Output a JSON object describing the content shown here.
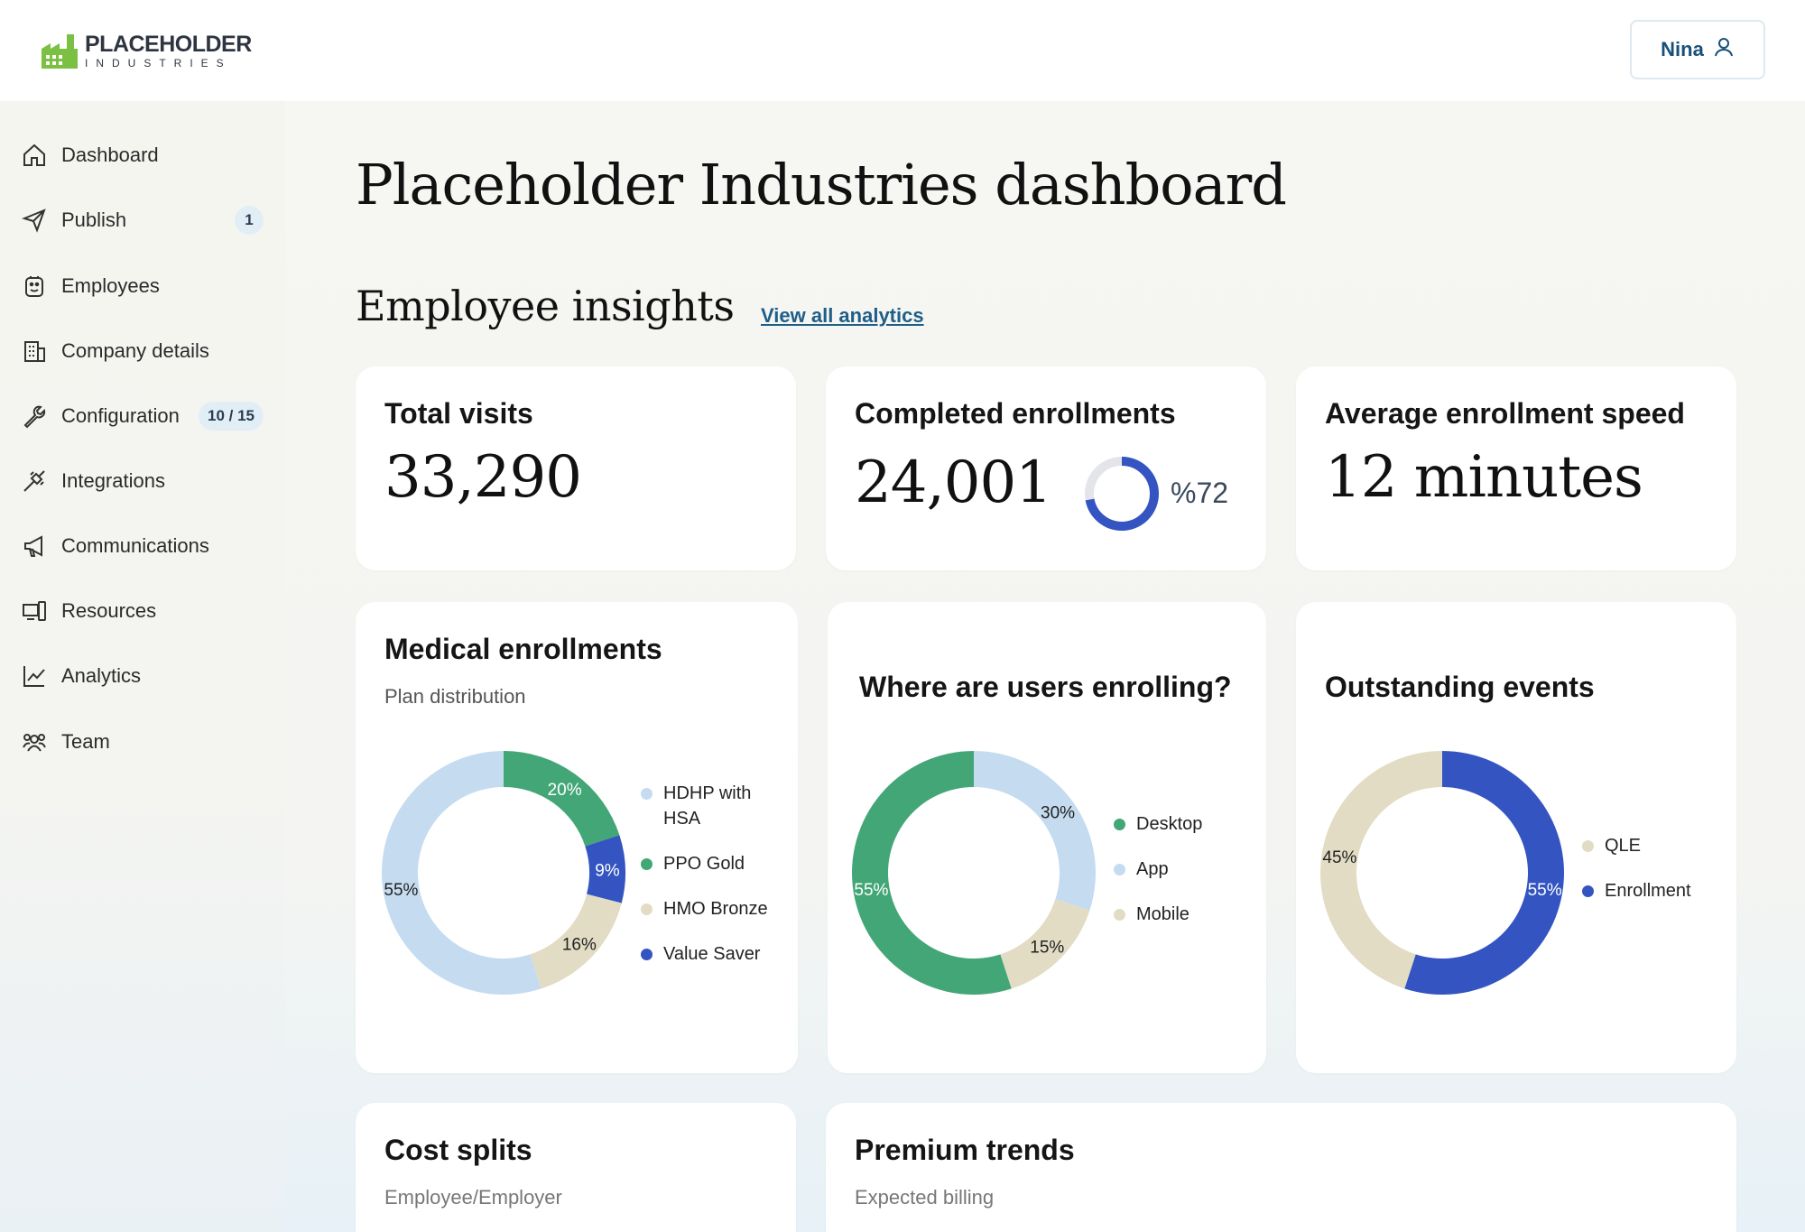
{
  "header": {
    "logo_title": "PLACEHOLDER",
    "logo_subtitle": "INDUSTRIES",
    "user_name": "Nina"
  },
  "sidebar": {
    "items": [
      {
        "label": "Dashboard",
        "icon": "home-icon"
      },
      {
        "label": "Publish",
        "icon": "send-icon",
        "badge": "1"
      },
      {
        "label": "Employees",
        "icon": "employee-icon"
      },
      {
        "label": "Company details",
        "icon": "building-icon"
      },
      {
        "label": "Configuration",
        "icon": "wrench-icon",
        "badge": "10 / 15"
      },
      {
        "label": "Integrations",
        "icon": "plug-icon"
      },
      {
        "label": "Communications",
        "icon": "megaphone-icon"
      },
      {
        "label": "Resources",
        "icon": "devices-icon"
      },
      {
        "label": "Analytics",
        "icon": "chart-line-icon"
      },
      {
        "label": "Team",
        "icon": "team-icon"
      }
    ]
  },
  "main": {
    "page_title": "Placeholder Industries dashboard",
    "section_title": "Employee insights",
    "section_link": "View all analytics"
  },
  "stats": {
    "total_visits": {
      "title": "Total visits",
      "value": "33,290"
    },
    "completed_enrollments": {
      "title": "Completed enrollments",
      "value": "24,001",
      "percent_label": "%72",
      "percent": 72
    },
    "avg_speed": {
      "title": "Average enrollment speed",
      "value": "12 minutes"
    }
  },
  "cards": {
    "medical": {
      "title": "Medical enrollments",
      "subtitle": "Plan distribution"
    },
    "where": {
      "title": "Where are users enrolling?"
    },
    "outstanding": {
      "title": "Outstanding events"
    },
    "cost": {
      "title": "Cost splits",
      "subtitle": "Employee/Employer"
    },
    "premium": {
      "title": "Premium trends",
      "subtitle": "Expected billing"
    }
  },
  "colors": {
    "light_blue": "#c5dbf0",
    "green": "#43a677",
    "navy": "#3455c1",
    "beige": "#e3dcc4",
    "track": "#e3e5ea",
    "link": "#1f5e88"
  },
  "chart_data": [
    {
      "type": "pie",
      "title": "Medical enrollments",
      "subtitle": "Plan distribution",
      "categories": [
        "HDHP with HSA",
        "PPO Gold",
        "HMO Bronze",
        "Value Saver"
      ],
      "values": [
        55,
        20,
        16,
        9
      ],
      "value_labels": [
        "55%",
        "20%",
        "16%",
        "9%"
      ],
      "series_colors": [
        "#c5dbf0",
        "#43a677",
        "#e3dcc4",
        "#3455c1"
      ],
      "order": [
        "PPO Gold",
        "Value Saver",
        "HMO Bronze",
        "HDHP with HSA"
      ],
      "legend": "right"
    },
    {
      "type": "pie",
      "title": "Where are users enrolling?",
      "categories": [
        "Desktop",
        "App",
        "Mobile"
      ],
      "values": [
        55,
        30,
        15
      ],
      "value_labels": [
        "55%",
        "30%",
        "15%"
      ],
      "series_colors": [
        "#43a677",
        "#c5dbf0",
        "#e3dcc4"
      ],
      "order": [
        "App",
        "Mobile",
        "Desktop"
      ],
      "legend": "right"
    },
    {
      "type": "pie",
      "title": "Outstanding events",
      "categories": [
        "QLE",
        "Enrollment"
      ],
      "values": [
        45,
        55
      ],
      "value_labels": [
        "45%",
        "55%"
      ],
      "series_colors": [
        "#e3dcc4",
        "#3455c1"
      ],
      "order": [
        "Enrollment",
        "QLE"
      ],
      "legend": "right"
    }
  ]
}
